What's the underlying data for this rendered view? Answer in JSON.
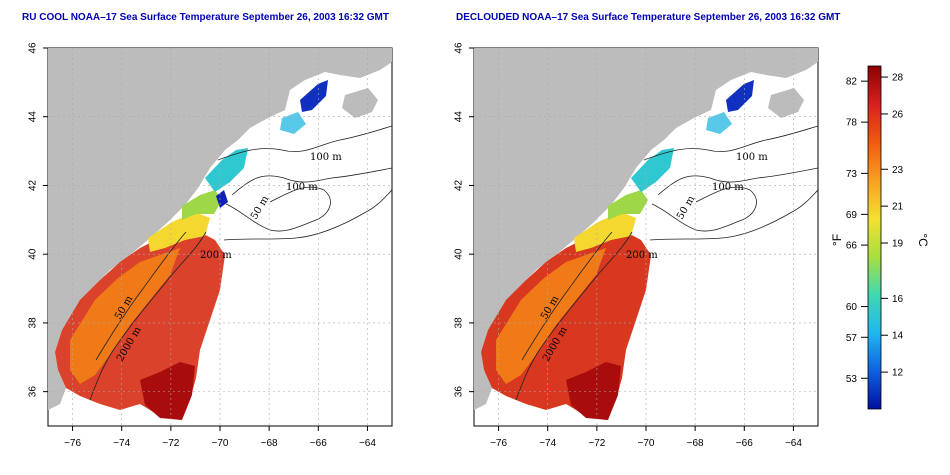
{
  "titles": {
    "left": "RU COOL NOAA–17 Sea Surface Temperature September 26, 2003 16:32 GMT",
    "right": "DECLOUDED NOAA–17 Sea Surface Temperature September 26, 2003 16:32 GMT"
  },
  "axes": {
    "x_ticks": [
      "−76",
      "−74",
      "−72",
      "−70",
      "−68",
      "−66",
      "−64"
    ],
    "y_ticks": [
      "46",
      "44",
      "42",
      "40",
      "38",
      "36"
    ]
  },
  "contour_labels": [
    "100 m",
    "100 m",
    "50 m",
    "200 m",
    "50 m",
    "2000 m"
  ],
  "colorbar": {
    "f_unit": "°F",
    "c_unit": "°C",
    "f_ticks": [
      "82",
      "78",
      "73",
      "69",
      "66",
      "60",
      "57",
      "53"
    ],
    "c_ticks": [
      "28",
      "26",
      "23",
      "21",
      "19",
      "16",
      "14",
      "12"
    ],
    "colors": [
      "#8b0000",
      "#d82020",
      "#f05a10",
      "#f8a020",
      "#f4e030",
      "#a8e040",
      "#40d8b0",
      "#20b8f0",
      "#1060e0",
      "#0010a0"
    ]
  },
  "chart_data": {
    "type": "heatmap",
    "panels": [
      "RU COOL NOAA–17 Sea Surface Temperature September 26, 2003 16:32 GMT",
      "DECLOUDED NOAA–17 Sea Surface Temperature September 26, 2003 16:32 GMT"
    ],
    "xlim": [
      -77,
      -63
    ],
    "ylim": [
      35,
      46
    ],
    "x_ticks": [
      -76,
      -74,
      -72,
      -70,
      -68,
      -66,
      -64
    ],
    "y_ticks": [
      46,
      44,
      42,
      40,
      38,
      36
    ],
    "colorbar_celsius_ticks": [
      28,
      26,
      23,
      21,
      19,
      16,
      14,
      12
    ],
    "colorbar_fahrenheit_ticks": [
      82,
      78,
      73,
      69,
      66,
      60,
      57,
      53
    ],
    "grid": true
  }
}
